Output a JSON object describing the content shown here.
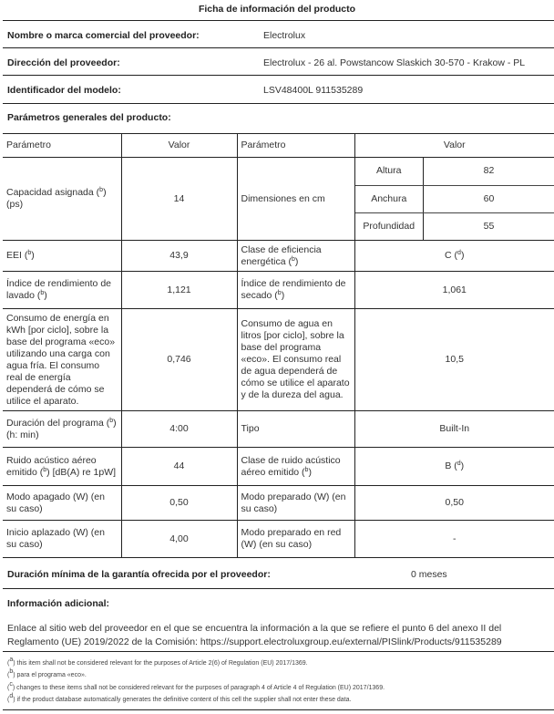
{
  "title": "Ficha de información del producto",
  "supplier": {
    "name_label": "Nombre o marca comercial del proveedor:",
    "name": "Electrolux",
    "address_label": "Dirección del proveedor:",
    "address": "Electrolux - 26 al. Powstancow Slaskich 30-570 - Krakow - PL",
    "model_label": "Identificador del modelo:",
    "model": "LSV48400L 911535289"
  },
  "general_label": "Parámetros generales del producto:",
  "table": {
    "headers": [
      "Parámetro",
      "Valor",
      "Parámetro",
      "Valor"
    ],
    "capacity": {
      "label": "Capacidad asignada (",
      "sup": "b",
      "label_end": ") (ps)",
      "value": "14"
    },
    "dimensions": {
      "label": "Dimensiones en cm",
      "rows": [
        {
          "name": "Altura",
          "value": "82"
        },
        {
          "name": "Anchura",
          "value": "60"
        },
        {
          "name": "Profundidad",
          "value": "55"
        }
      ]
    },
    "rows": [
      {
        "p1": "EEI (",
        "s1": "b",
        "e1": ")",
        "v1": "43,9",
        "p2": "Clase de eficiencia energética (",
        "s2": "b",
        "e2": ")",
        "v2": "C (",
        "vs2": "d",
        "ve2": ")"
      },
      {
        "p1": "Índice de rendimiento de lavado (",
        "s1": "b",
        "e1": ")",
        "v1": "1,121",
        "p2": "Índice de rendimiento de secado (",
        "s2": "b",
        "e2": ")",
        "v2": "1,061"
      },
      {
        "p1": "Consumo de energía en kWh [por ciclo], sobre la base del programa «eco» utilizando una carga con agua fría. El consumo real de energía dependerá de cómo se utilice el aparato.",
        "v1": "0,746",
        "p2": "Consumo de agua en litros [por ciclo], sobre la base del programa «eco». El consumo real de agua dependerá de cómo se utilice el aparato y de la dureza del agua.",
        "v2": "10,5"
      },
      {
        "p1": "Duración del programa (",
        "s1": "b",
        "e1": ") (h: min)",
        "v1": "4:00",
        "p2": "Tipo",
        "v2": "Built-In"
      },
      {
        "p1": "Ruido acústico aéreo emitido (",
        "s1": "b",
        "e1": ") [dB(A) re 1pW]",
        "v1": "44",
        "p2": "Clase de ruido acústico aéreo emitido (",
        "s2": "b",
        "e2": ")",
        "v2": "B (",
        "vs2": "d",
        "ve2": ")"
      },
      {
        "p1": "Modo apagado (W) (en su caso)",
        "v1": "0,50",
        "p2": "Modo preparado (W) (en su caso)",
        "v2": "0,50"
      },
      {
        "p1": "Inicio aplazado (W) (en su caso)",
        "v1": "4,00",
        "p2": "Modo preparado en red (W) (en su caso)",
        "v2": "-"
      }
    ]
  },
  "warranty": {
    "label": "Duración mínima de la garantía ofrecida por el proveedor:",
    "value": "0 meses"
  },
  "additional_label": "Información adicional:",
  "link_text": "Enlace al sitio web del proveedor en el que se encuentra la información a la que se refiere el punto 6 del anexo II del Reglamento (UE) 2019/2022 de la Comisión: https://support.electroluxgroup.eu/external/PISlink/Products/911535289",
  "footnotes": [
    {
      "mark": "a",
      "text": "this item shall not be considered relevant for the purposes of Article 2(6) of Regulation (EU) 2017/1369."
    },
    {
      "mark": "b",
      "text": "para el programa «eco»."
    },
    {
      "mark": "c",
      "text": "changes to these items shall not be considered relevant for the purposes of paragraph 4 of Article 4 of Regulation (EU) 2017/1369."
    },
    {
      "mark": "d",
      "text": "if the product database automatically generates the definitive content of this cell the supplier shall not enter these data."
    }
  ]
}
